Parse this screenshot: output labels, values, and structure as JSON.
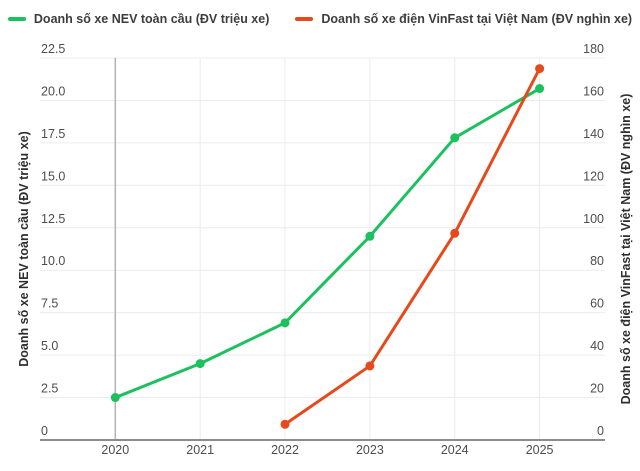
{
  "chart_data": {
    "type": "line",
    "categories": [
      "2020",
      "2021",
      "2022",
      "2023",
      "2024",
      "2025"
    ],
    "series": [
      {
        "name": "Doanh số xe NEV toàn cầu (ĐV triệu xe)",
        "axis": "left",
        "color": "#1cc15e",
        "values": [
          2.5,
          4.5,
          6.9,
          12.0,
          17.8,
          20.7
        ]
      },
      {
        "name": "Doanh số xe điện VinFast tại Việt Nam (ĐV nghìn xe)",
        "axis": "right",
        "color": "#e64a1c",
        "values": [
          null,
          null,
          7.4,
          34.9,
          97.4,
          175
        ]
      }
    ],
    "left_axis": {
      "title": "Doanh số xe NEV toàn cầu (ĐV triệu xe)",
      "max": 22.5,
      "tick_labels": [
        "0",
        "2.5",
        "5.0",
        "7.5",
        "10.0",
        "12.5",
        "15.0",
        "17.5",
        "20.0",
        "22.5"
      ]
    },
    "right_axis": {
      "title": "Doanh số xe điện VinFast tại Việt Nam (ĐV nghìn xe)",
      "max": 180,
      "tick_labels": [
        "0",
        "20",
        "40",
        "60",
        "80",
        "100",
        "120",
        "140",
        "160",
        "180"
      ]
    },
    "legend_position": "top",
    "grid": true,
    "colors": {
      "gridline": "#ececec",
      "x_axis_line": "#8c8c8c",
      "y_axis_line": "#b3b3b3",
      "tick_text": "#4d4d4d"
    }
  }
}
